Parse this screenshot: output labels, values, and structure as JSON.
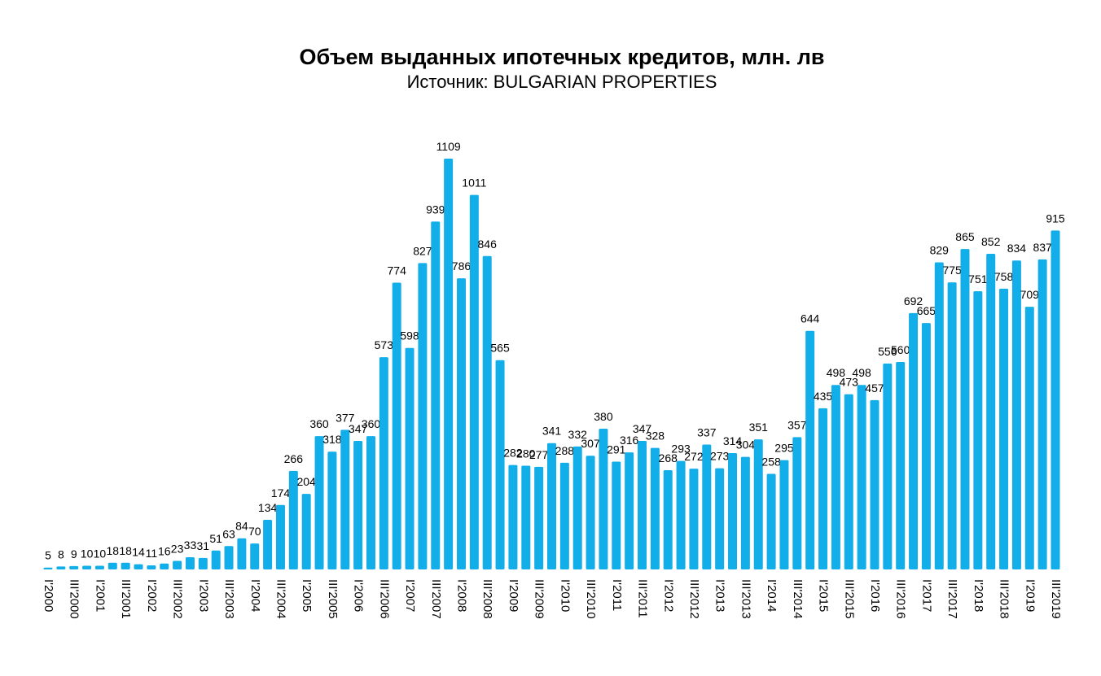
{
  "chart_data": {
    "type": "bar",
    "title": "Объем выданных ипотечных кредитов, млн. лв",
    "subtitle": "Источник: BULGARIAN PROPERTIES",
    "color": "#12aeea",
    "categories": [
      "I'2000",
      null,
      "III'2000",
      null,
      "I'2001",
      null,
      "III'2001",
      null,
      "I'2002",
      null,
      "III'2002",
      null,
      "I'2003",
      null,
      "III'2003",
      null,
      "I'2004",
      null,
      "III'2004",
      null,
      "I'2005",
      null,
      "III'2005",
      null,
      "I'2006",
      null,
      "III'2006",
      null,
      "I'2007",
      null,
      "III'2007",
      null,
      "I'2008",
      null,
      "III'2008",
      null,
      "I'2009",
      null,
      "III'2009",
      null,
      "I'2010",
      null,
      "III'2010",
      null,
      "I'2011",
      null,
      "III'2011",
      null,
      "I'2012",
      null,
      "III'2012",
      null,
      "I'2013",
      null,
      "III'2013",
      null,
      "I'2014",
      null,
      "III'2014",
      null,
      "I'2015",
      null,
      "III'2015",
      null,
      "I'2016",
      null,
      "III'2016",
      null,
      "I'2017",
      null,
      "III'2017",
      null,
      "I'2018",
      null,
      "III'2018",
      null,
      "I'2019",
      null,
      "III'2019"
    ],
    "values": [
      5,
      8,
      9,
      10,
      10,
      18,
      18,
      14,
      11,
      16,
      23,
      33,
      31,
      51,
      63,
      84,
      70,
      134,
      174,
      266,
      204,
      360,
      318,
      377,
      347,
      360,
      573,
      774,
      598,
      827,
      939,
      1109,
      786,
      1011,
      846,
      565,
      282,
      280,
      277,
      341,
      288,
      332,
      307,
      380,
      291,
      316,
      347,
      328,
      268,
      293,
      272,
      337,
      273,
      314,
      304,
      351,
      258,
      295,
      357,
      644,
      435,
      498,
      473,
      498,
      457,
      556,
      560,
      692,
      665,
      829,
      775,
      865,
      751,
      852,
      758,
      834,
      709,
      837,
      915
    ]
  }
}
